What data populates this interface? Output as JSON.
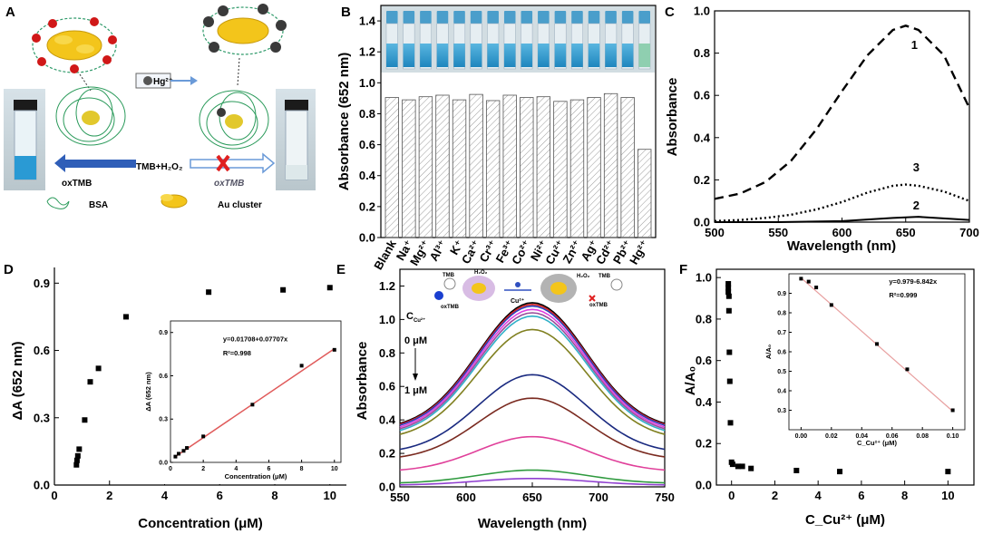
{
  "figure": {
    "panel_labels": [
      "A",
      "B",
      "C",
      "D",
      "E",
      "F"
    ]
  },
  "schematic_a": {
    "reaction_label": "TMB+H₂O₂",
    "left_product": "oxTMB",
    "right_product": "oxTMB",
    "ion_label": "Hg²⁺",
    "legend_bsa": "BSA",
    "legend_au": "Au cluster"
  },
  "schematic_e": {
    "conc_label": "C",
    "conc_sub": "Cu²⁺",
    "start_label": "0 μM",
    "end_label": "1 μM",
    "tmb_label": "TMB",
    "oxtmb_label": "oxTMB",
    "cu_label": "Cu²⁺",
    "h2o2_label": "H₂O₂"
  },
  "colors": {
    "hatch_bar": "#888888",
    "fit_line": "#e05a5a",
    "light_fit": "#e8a0a0",
    "solution_blue": "#1f8fc6"
  },
  "chart_data": [
    {
      "panel": "B",
      "type": "bar",
      "ylabel": "Absorbance (652 nm)",
      "ylim": [
        0,
        1.5
      ],
      "yticks": [
        "0.0",
        "0.2",
        "0.4",
        "0.6",
        "0.8",
        "1.0",
        "1.2",
        "1.4"
      ],
      "categories": [
        "Blank",
        "Na⁺",
        "Mg²⁺",
        "Al³⁺",
        "K⁺",
        "Ca²⁺",
        "Cr³⁺",
        "Fe³⁺",
        "Co²⁺",
        "Ni²⁺",
        "Cu²⁺",
        "Zn²⁺",
        "Ag⁺",
        "Cd²⁺",
        "Pb²⁺",
        "Hg²⁺"
      ],
      "values": [
        0.905,
        0.89,
        0.91,
        0.92,
        0.89,
        0.925,
        0.885,
        0.92,
        0.905,
        0.91,
        0.88,
        0.89,
        0.905,
        0.93,
        0.905,
        0.57
      ]
    },
    {
      "panel": "C",
      "type": "line",
      "xlabel": "Wavelength (nm)",
      "ylabel": "Absorbance",
      "xlim": [
        500,
        700
      ],
      "ylim": [
        0,
        1.0
      ],
      "xticks": [
        "500",
        "550",
        "600",
        "650",
        "700"
      ],
      "yticks": [
        "0.0",
        "0.2",
        "0.4",
        "0.6",
        "0.8",
        "1.0"
      ],
      "series": [
        {
          "name": "1",
          "style": "dashed",
          "x": [
            500,
            520,
            540,
            560,
            580,
            600,
            620,
            640,
            650,
            660,
            680,
            700
          ],
          "y": [
            0.11,
            0.135,
            0.19,
            0.29,
            0.44,
            0.62,
            0.79,
            0.91,
            0.93,
            0.91,
            0.79,
            0.54
          ]
        },
        {
          "name": "3",
          "style": "dotted",
          "x": [
            500,
            520,
            540,
            560,
            580,
            600,
            620,
            640,
            650,
            660,
            680,
            700
          ],
          "y": [
            0.005,
            0.01,
            0.02,
            0.035,
            0.06,
            0.095,
            0.14,
            0.172,
            0.178,
            0.172,
            0.145,
            0.1
          ]
        },
        {
          "name": "2",
          "style": "solid",
          "x": [
            500,
            550,
            600,
            640,
            660,
            700
          ],
          "y": [
            0.0,
            0.0,
            0.005,
            0.02,
            0.025,
            0.01
          ]
        }
      ]
    },
    {
      "panel": "D",
      "type": "scatter",
      "xlabel": "Concentration (μM)",
      "ylabel": "ΔA (652 nm)",
      "xlim": [
        0,
        10.6
      ],
      "ylim": [
        0,
        0.97
      ],
      "xticks": [
        "0",
        "2",
        "4",
        "6",
        "8",
        "10"
      ],
      "yticks": [
        "0.0",
        "0.3",
        "0.6",
        "0.9"
      ],
      "x": [
        0.8,
        0.82,
        0.85,
        0.9,
        1.1,
        1.3,
        1.6,
        2.6,
        5.6,
        8.3,
        10.0
      ],
      "y": [
        0.09,
        0.11,
        0.13,
        0.16,
        0.29,
        0.46,
        0.52,
        0.75,
        0.86,
        0.87,
        0.88
      ],
      "inset": {
        "type": "scatter",
        "xlabel": "Concentration (μM)",
        "ylabel": "ΔA (652 nm)",
        "xlim": [
          0,
          10.4
        ],
        "ylim": [
          0,
          0.98
        ],
        "xticks": [
          "0",
          "2",
          "4",
          "6",
          "8",
          "10"
        ],
        "yticks": [
          "0.0",
          "0.3",
          "0.6",
          "0.9"
        ],
        "equation": "y=0.01708+0.07707x",
        "r2": "R²=0.998",
        "x": [
          0.3,
          0.5,
          0.8,
          1.0,
          2.0,
          5.0,
          8.0,
          10.0
        ],
        "y": [
          0.04,
          0.06,
          0.08,
          0.1,
          0.18,
          0.4,
          0.67,
          0.78
        ],
        "fit": {
          "intercept": 0.01708,
          "slope": 0.07707
        }
      }
    },
    {
      "panel": "E",
      "type": "line",
      "xlabel": "Wavelength (nm)",
      "ylabel": "Absorbance",
      "xlim": [
        550,
        750
      ],
      "ylim": [
        0,
        1.3
      ],
      "xticks": [
        "550",
        "600",
        "650",
        "700",
        "750"
      ],
      "yticks": [
        "0.0",
        "0.2",
        "0.4",
        "0.6",
        "0.8",
        "1.0",
        "1.2"
      ],
      "series": [
        {
          "name": "c1",
          "color": "#000000",
          "peak": 1.1,
          "edge": 0.34
        },
        {
          "name": "c2",
          "color": "#d42020",
          "peak": 1.09,
          "edge": 0.335
        },
        {
          "name": "c3",
          "color": "#2a3fb8",
          "peak": 1.08,
          "edge": 0.33
        },
        {
          "name": "c4",
          "color": "#e040e0",
          "peak": 1.06,
          "edge": 0.32
        },
        {
          "name": "c5",
          "color": "#9a4c9a",
          "peak": 1.04,
          "edge": 0.31
        },
        {
          "name": "c6",
          "color": "#30b0c8",
          "peak": 1.02,
          "edge": 0.3
        },
        {
          "name": "c7",
          "color": "#808020",
          "peak": 0.94,
          "edge": 0.28
        },
        {
          "name": "c8",
          "color": "#1a2a80",
          "peak": 0.67,
          "edge": 0.2
        },
        {
          "name": "c9",
          "color": "#7a2a20",
          "peak": 0.53,
          "edge": 0.16
        },
        {
          "name": "c10",
          "color": "#e0409a",
          "peak": 0.3,
          "edge": 0.09
        },
        {
          "name": "c11",
          "color": "#2e9a3e",
          "peak": 0.1,
          "edge": 0.02
        },
        {
          "name": "c12",
          "color": "#9040d0",
          "peak": 0.05,
          "edge": 0.01
        }
      ]
    },
    {
      "panel": "F",
      "type": "scatter",
      "xlabel": "C_Cu²⁺ (μM)",
      "ylabel": "A/A₀",
      "xlim": [
        -0.7,
        11.2
      ],
      "ylim": [
        0,
        1.04
      ],
      "xticks": [
        "0",
        "2",
        "4",
        "6",
        "8",
        "10"
      ],
      "yticks": [
        "0.0",
        "0.2",
        "0.4",
        "0.6",
        "0.8",
        "1.0"
      ],
      "x": [
        -0.15,
        -0.15,
        -0.15,
        -0.12,
        -0.12,
        -0.1,
        -0.08,
        -0.05,
        0.0,
        0.05,
        0.3,
        0.5,
        0.9,
        3.0,
        5.0,
        10.0
      ],
      "y": [
        0.97,
        0.95,
        0.93,
        0.91,
        0.84,
        0.64,
        0.5,
        0.3,
        0.11,
        0.1,
        0.09,
        0.09,
        0.08,
        0.07,
        0.065,
        0.065
      ],
      "inset": {
        "type": "scatter",
        "xlabel": "C_Cu²⁺ (μM)",
        "ylabel": "A/A₀",
        "xlim": [
          -0.008,
          0.108
        ],
        "ylim": [
          0.2,
          1.0
        ],
        "xticks": [
          "0.00",
          "0.02",
          "0.04",
          "0.06",
          "0.08",
          "0.10"
        ],
        "yticks": [
          "0.3",
          "0.4",
          "0.5",
          "0.6",
          "0.7",
          "0.8",
          "0.9"
        ],
        "equation": "y=0.979-6.842x",
        "r2": "R²=0.999",
        "x": [
          0.0,
          0.005,
          0.01,
          0.02,
          0.05,
          0.07,
          0.1
        ],
        "y": [
          0.975,
          0.96,
          0.93,
          0.84,
          0.64,
          0.51,
          0.3
        ],
        "fit": {
          "intercept": 0.979,
          "slope": -6.842
        }
      }
    }
  ]
}
